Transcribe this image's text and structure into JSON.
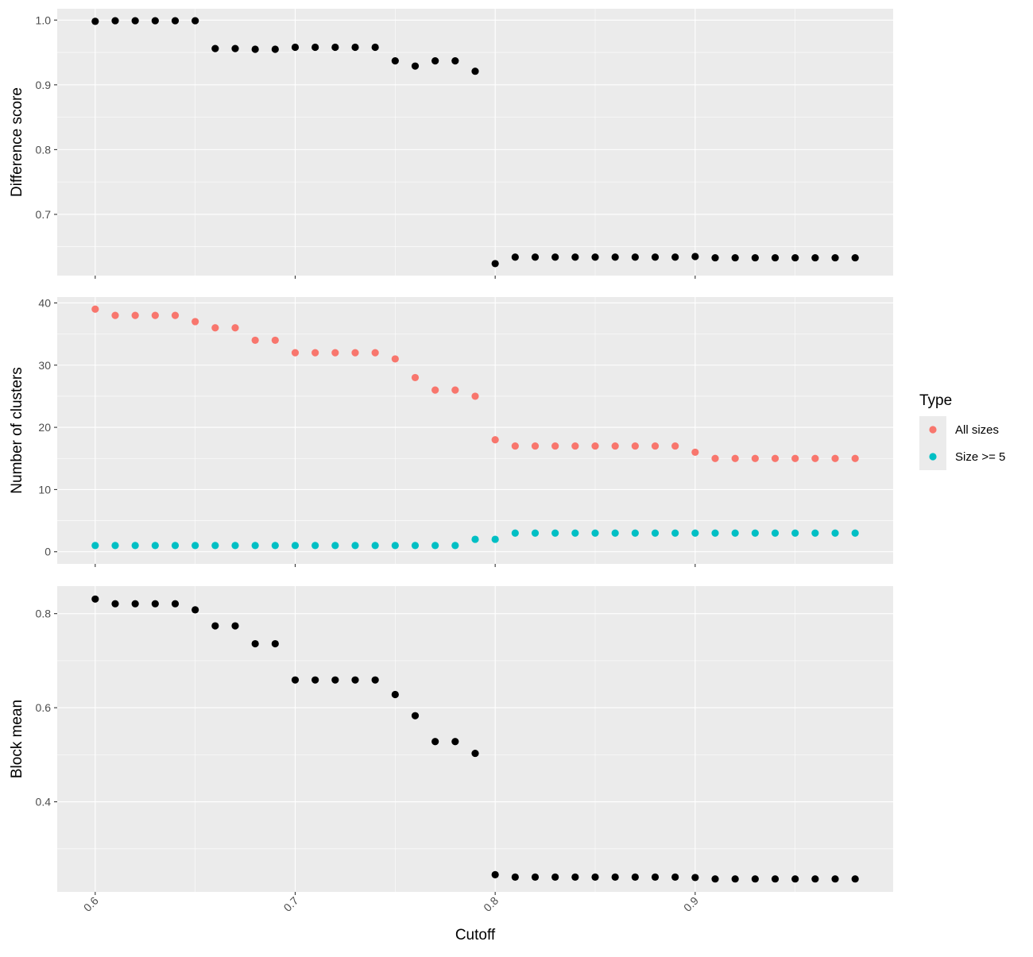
{
  "chart_data": {
    "type": "scatter",
    "xlabel": "Cutoff",
    "x_ticks": [
      "0.6",
      "0.7",
      "0.8",
      "0.9"
    ],
    "x_tick_values": [
      0.6,
      0.7,
      0.8,
      0.9
    ],
    "xlim": [
      0.581,
      0.999
    ],
    "x": [
      0.6,
      0.61,
      0.62,
      0.63,
      0.64,
      0.65,
      0.66,
      0.67,
      0.68,
      0.69,
      0.7,
      0.71,
      0.72,
      0.73,
      0.74,
      0.75,
      0.76,
      0.77,
      0.78,
      0.79,
      0.8,
      0.81,
      0.82,
      0.83,
      0.84,
      0.85,
      0.86,
      0.87,
      0.88,
      0.89,
      0.9,
      0.91,
      0.92,
      0.93,
      0.94,
      0.95,
      0.96,
      0.97,
      0.98
    ],
    "background": "#ebebeb",
    "grid": true,
    "legend": {
      "title": "Type",
      "position": "right",
      "entries": [
        {
          "label": "All sizes",
          "color": "#f8766d"
        },
        {
          "label": "Size >= 5",
          "color": "#00bfc4"
        }
      ]
    },
    "panels": [
      {
        "ylabel": "Difference score",
        "ylim": [
          0.6055,
          1.0175
        ],
        "y_ticks": [
          "0.7",
          "0.8",
          "0.9",
          "1.0"
        ],
        "y_tick_values": [
          0.7,
          0.8,
          0.9,
          1.0
        ],
        "series": [
          {
            "color": "#000000",
            "values": [
              0.998,
              0.999,
              0.999,
              0.999,
              0.999,
              0.999,
              0.956,
              0.956,
              0.955,
              0.955,
              0.958,
              0.958,
              0.958,
              0.958,
              0.958,
              0.937,
              0.929,
              0.937,
              0.937,
              0.921,
              0.624,
              0.634,
              0.634,
              0.634,
              0.634,
              0.634,
              0.634,
              0.634,
              0.634,
              0.634,
              0.635,
              0.633,
              0.633,
              0.633,
              0.633,
              0.633,
              0.633,
              0.633,
              0.633
            ]
          }
        ]
      },
      {
        "ylabel": "Number of clusters",
        "ylim": [
          -1.95,
          40.95
        ],
        "y_ticks": [
          "0",
          "10",
          "20",
          "30",
          "40"
        ],
        "y_tick_values": [
          0,
          10,
          20,
          30,
          40
        ],
        "series": [
          {
            "name": "All sizes",
            "color": "#f8766d",
            "values": [
              39,
              38,
              38,
              38,
              38,
              37,
              36,
              36,
              34,
              34,
              32,
              32,
              32,
              32,
              32,
              31,
              28,
              26,
              26,
              25,
              18,
              17,
              17,
              17,
              17,
              17,
              17,
              17,
              17,
              17,
              16,
              15,
              15,
              15,
              15,
              15,
              15,
              15,
              15
            ]
          },
          {
            "name": "Size >= 5",
            "color": "#00bfc4",
            "values": [
              1,
              1,
              1,
              1,
              1,
              1,
              1,
              1,
              1,
              1,
              1,
              1,
              1,
              1,
              1,
              1,
              1,
              1,
              1,
              2,
              2,
              3,
              3,
              3,
              3,
              3,
              3,
              3,
              3,
              3,
              3,
              3,
              3,
              3,
              3,
              3,
              3,
              3,
              3
            ]
          }
        ]
      },
      {
        "ylabel": "Block mean",
        "ylim": [
          0.2085,
          0.8585
        ],
        "y_ticks": [
          "0.4",
          "0.6",
          "0.8"
        ],
        "y_tick_values": [
          0.4,
          0.6,
          0.8
        ],
        "series": [
          {
            "color": "#000000",
            "values": [
              0.831,
              0.821,
              0.821,
              0.821,
              0.821,
              0.808,
              0.774,
              0.774,
              0.736,
              0.736,
              0.659,
              0.659,
              0.659,
              0.659,
              0.659,
              0.628,
              0.583,
              0.528,
              0.528,
              0.503,
              0.245,
              0.24,
              0.24,
              0.24,
              0.24,
              0.24,
              0.24,
              0.24,
              0.24,
              0.24,
              0.239,
              0.236,
              0.236,
              0.236,
              0.236,
              0.236,
              0.236,
              0.236,
              0.236
            ]
          }
        ]
      }
    ]
  }
}
